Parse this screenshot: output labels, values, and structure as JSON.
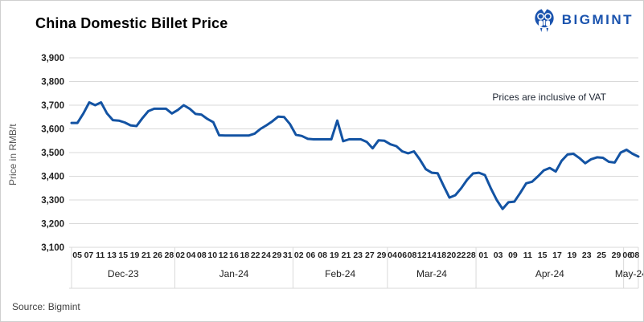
{
  "title": "China Domestic Billet Price",
  "logo": {
    "text": "BIGMINT"
  },
  "annotation": "Prices are inclusive of VAT",
  "source": "Source: Bigmint",
  "colors": {
    "line": "#1353A3",
    "grid": "#D9D9D9",
    "axis_text": "#1f1f1f",
    "muted_text": "#595959",
    "logo_blue": "#1A53AE",
    "annotation_text": "#1e2633"
  },
  "chart_data": {
    "type": "line",
    "title": "China Domestic Billet Price",
    "xlabel": "",
    "ylabel": "Price in RMB/t",
    "ylim": [
      3100,
      3900
    ],
    "y_ticks": [
      3900,
      3800,
      3700,
      3600,
      3500,
      3400,
      3300,
      3200,
      3100
    ],
    "grid": true,
    "legend_position": "none",
    "annotation": "Prices are inclusive of VAT",
    "months": [
      {
        "label": "Dec-23",
        "days": [
          "05",
          "07",
          "11",
          "13",
          "15",
          "19",
          "21",
          "26",
          "28"
        ],
        "points": 18
      },
      {
        "label": "Jan-24",
        "days": [
          "02",
          "04",
          "08",
          "10",
          "12",
          "16",
          "18",
          "22",
          "24",
          "29",
          "31"
        ],
        "points": 20
      },
      {
        "label": "Feb-24",
        "days": [
          "02",
          "06",
          "08",
          "19",
          "21",
          "23",
          "27",
          "29"
        ],
        "points": 16
      },
      {
        "label": "Mar-24",
        "days": [
          "04",
          "06",
          "08",
          "12",
          "14",
          "18",
          "20",
          "22",
          "28"
        ],
        "points": 15
      },
      {
        "label": "Apr-24",
        "days": [
          "01",
          "03",
          "09",
          "11",
          "15",
          "17",
          "19",
          "23",
          "25",
          "29"
        ],
        "points": 25
      },
      {
        "label": "May-24",
        "days": [
          "06",
          "08"
        ],
        "points": 3
      }
    ],
    "series": [
      {
        "name": "China Domestic Billet Price",
        "values": [
          3625,
          3625,
          3665,
          3712,
          3700,
          3712,
          3665,
          3637,
          3635,
          3627,
          3615,
          3612,
          3645,
          3675,
          3685,
          3685,
          3685,
          3665,
          3680,
          3700,
          3685,
          3663,
          3660,
          3642,
          3628,
          3573,
          3572,
          3572,
          3572,
          3572,
          3572,
          3580,
          3600,
          3615,
          3632,
          3652,
          3650,
          3620,
          3575,
          3570,
          3558,
          3556,
          3556,
          3556,
          3556,
          3635,
          3548,
          3556,
          3556,
          3556,
          3545,
          3518,
          3552,
          3550,
          3535,
          3527,
          3505,
          3497,
          3505,
          3470,
          3430,
          3415,
          3413,
          3360,
          3310,
          3320,
          3350,
          3385,
          3412,
          3415,
          3405,
          3350,
          3300,
          3262,
          3290,
          3293,
          3330,
          3370,
          3377,
          3400,
          3425,
          3435,
          3420,
          3465,
          3492,
          3495,
          3477,
          3455,
          3472,
          3480,
          3478,
          3461,
          3458,
          3500,
          3512,
          3495,
          3483
        ]
      }
    ]
  }
}
